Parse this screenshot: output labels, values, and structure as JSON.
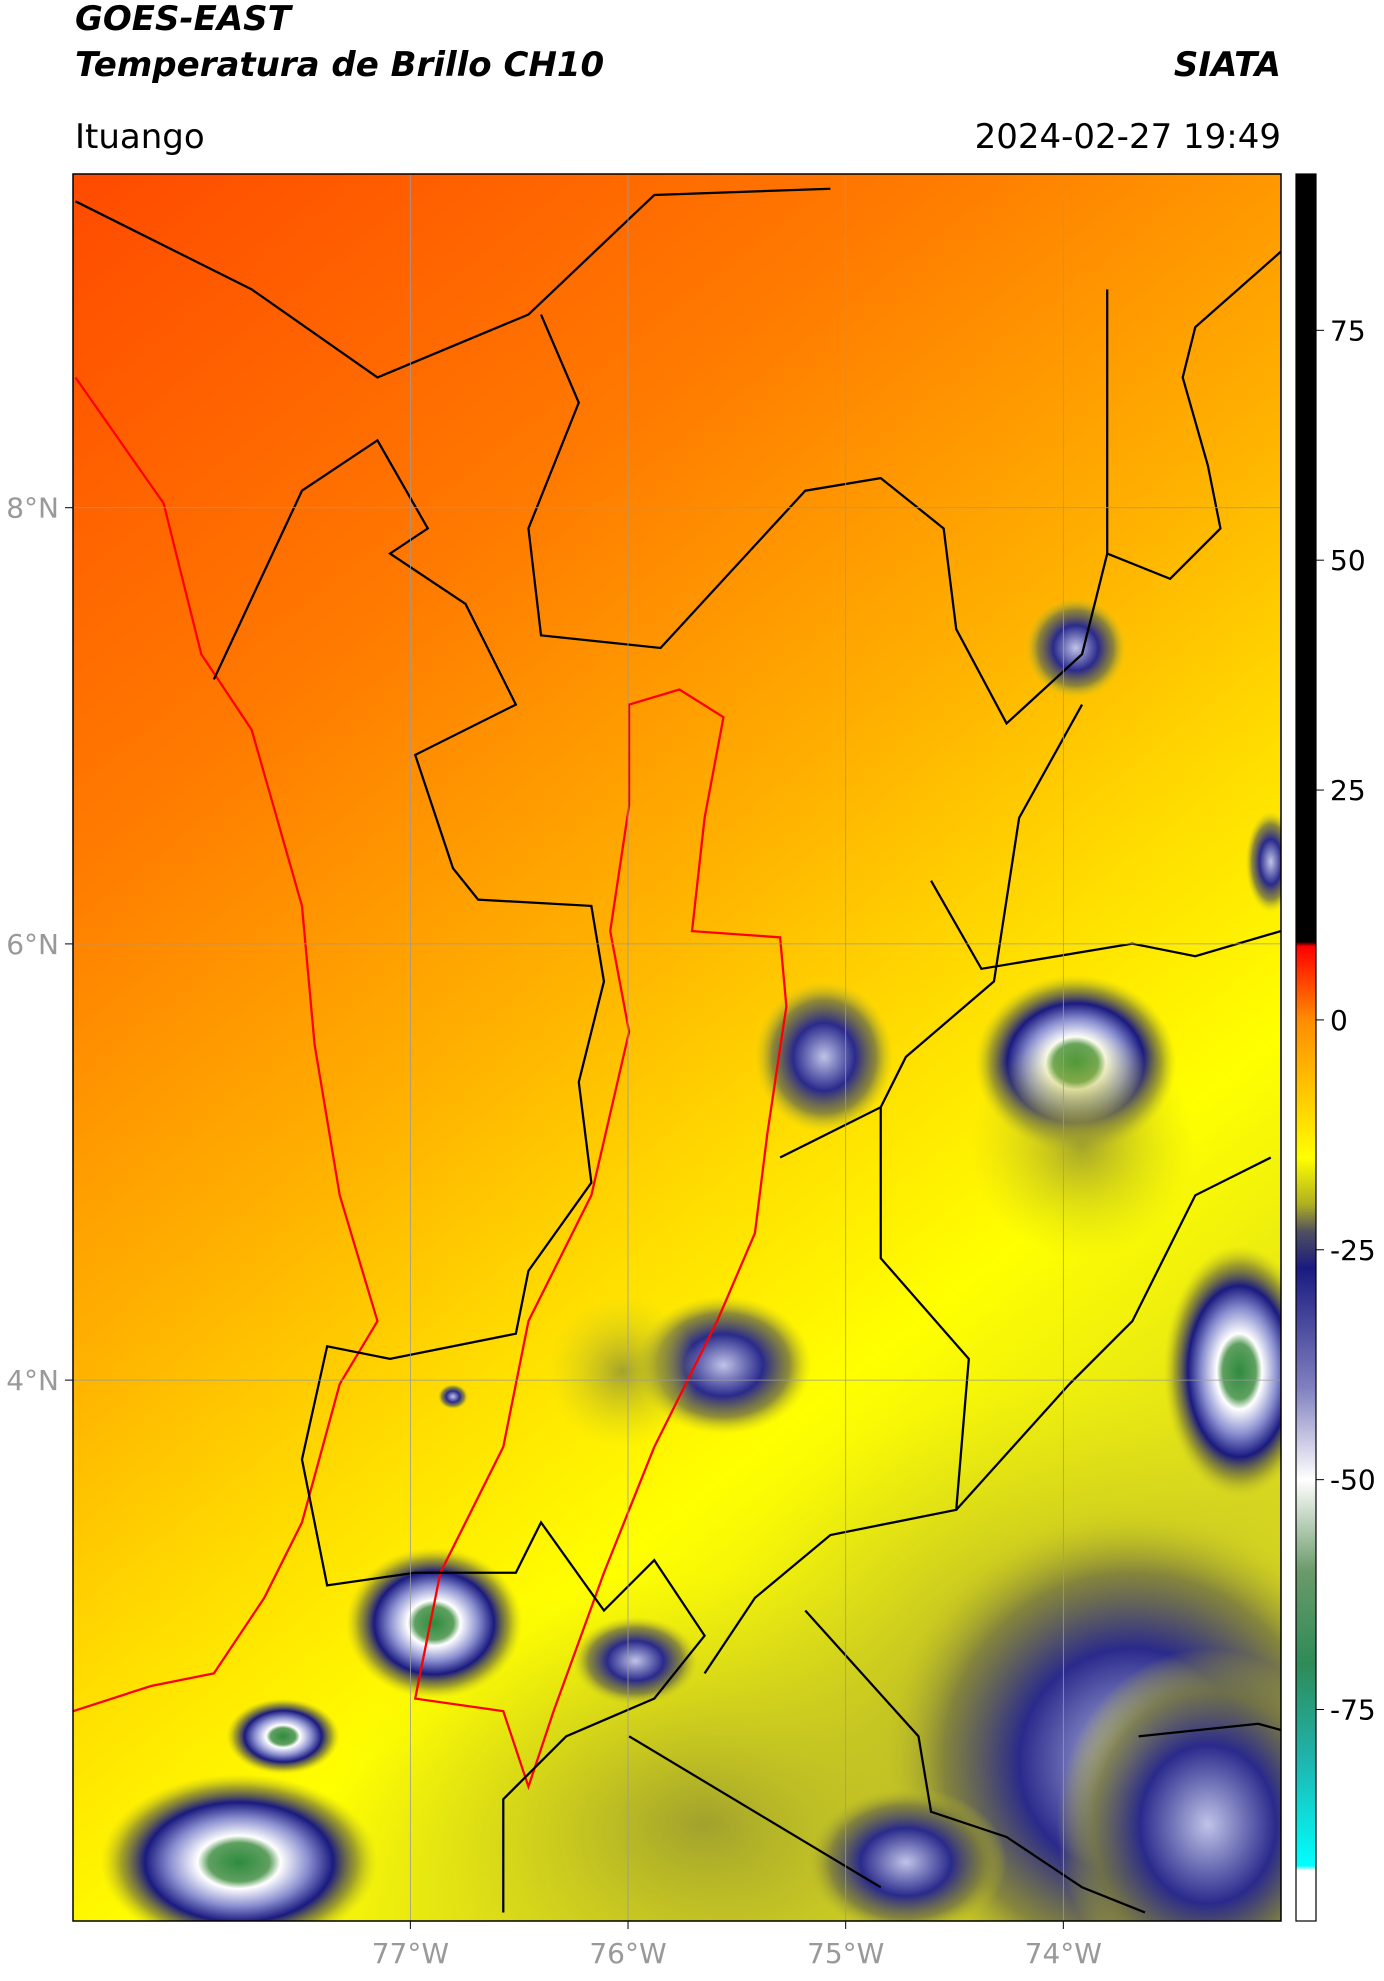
{
  "header": {
    "satellite": "GOES-EAST",
    "product": "Temperatura de Brillo CH10",
    "source": "SIATA",
    "location": "Ituango",
    "datetime": "2024-02-27 19:49"
  },
  "map": {
    "lonlim": [
      -78.55,
      -73.0
    ],
    "latlim": [
      1.52,
      9.53
    ],
    "lon_ticks": [
      {
        "value": -77,
        "label": "77°W"
      },
      {
        "value": -76,
        "label": "76°W"
      },
      {
        "value": -75,
        "label": "75°W"
      },
      {
        "value": -74,
        "label": "74°W"
      }
    ],
    "lat_ticks": [
      {
        "value": 8,
        "label": "8°N"
      },
      {
        "value": 6,
        "label": "6°N"
      },
      {
        "value": 4,
        "label": "4°N"
      }
    ],
    "grid": true,
    "grid_color": "#9a9a9a"
  },
  "colorbar": {
    "lim": [
      -98,
      92
    ],
    "ticks": [
      75,
      50,
      25,
      0,
      -25,
      -50,
      -75
    ],
    "stops": [
      {
        "value": 92,
        "color": "#000000"
      },
      {
        "value": 8.5,
        "color": "#000000"
      },
      {
        "value": 8,
        "color": "#ff0000"
      },
      {
        "value": 0,
        "color": "#ff8c00"
      },
      {
        "value": -10,
        "color": "#ffd700"
      },
      {
        "value": -15,
        "color": "#ffff00"
      },
      {
        "value": -20,
        "color": "#b0b020"
      },
      {
        "value": -23,
        "color": "#505060"
      },
      {
        "value": -27,
        "color": "#1a1a80"
      },
      {
        "value": -40,
        "color": "#8080c0"
      },
      {
        "value": -50,
        "color": "#ffffff"
      },
      {
        "value": -60,
        "color": "#6a9a6a"
      },
      {
        "value": -70,
        "color": "#2e8b57"
      },
      {
        "value": -80,
        "color": "#20b2aa"
      },
      {
        "value": -92,
        "color": "#00ffff"
      },
      {
        "value": -92.5,
        "color": "#ffffff"
      },
      {
        "value": -98,
        "color": "#ffffff"
      }
    ]
  }
}
